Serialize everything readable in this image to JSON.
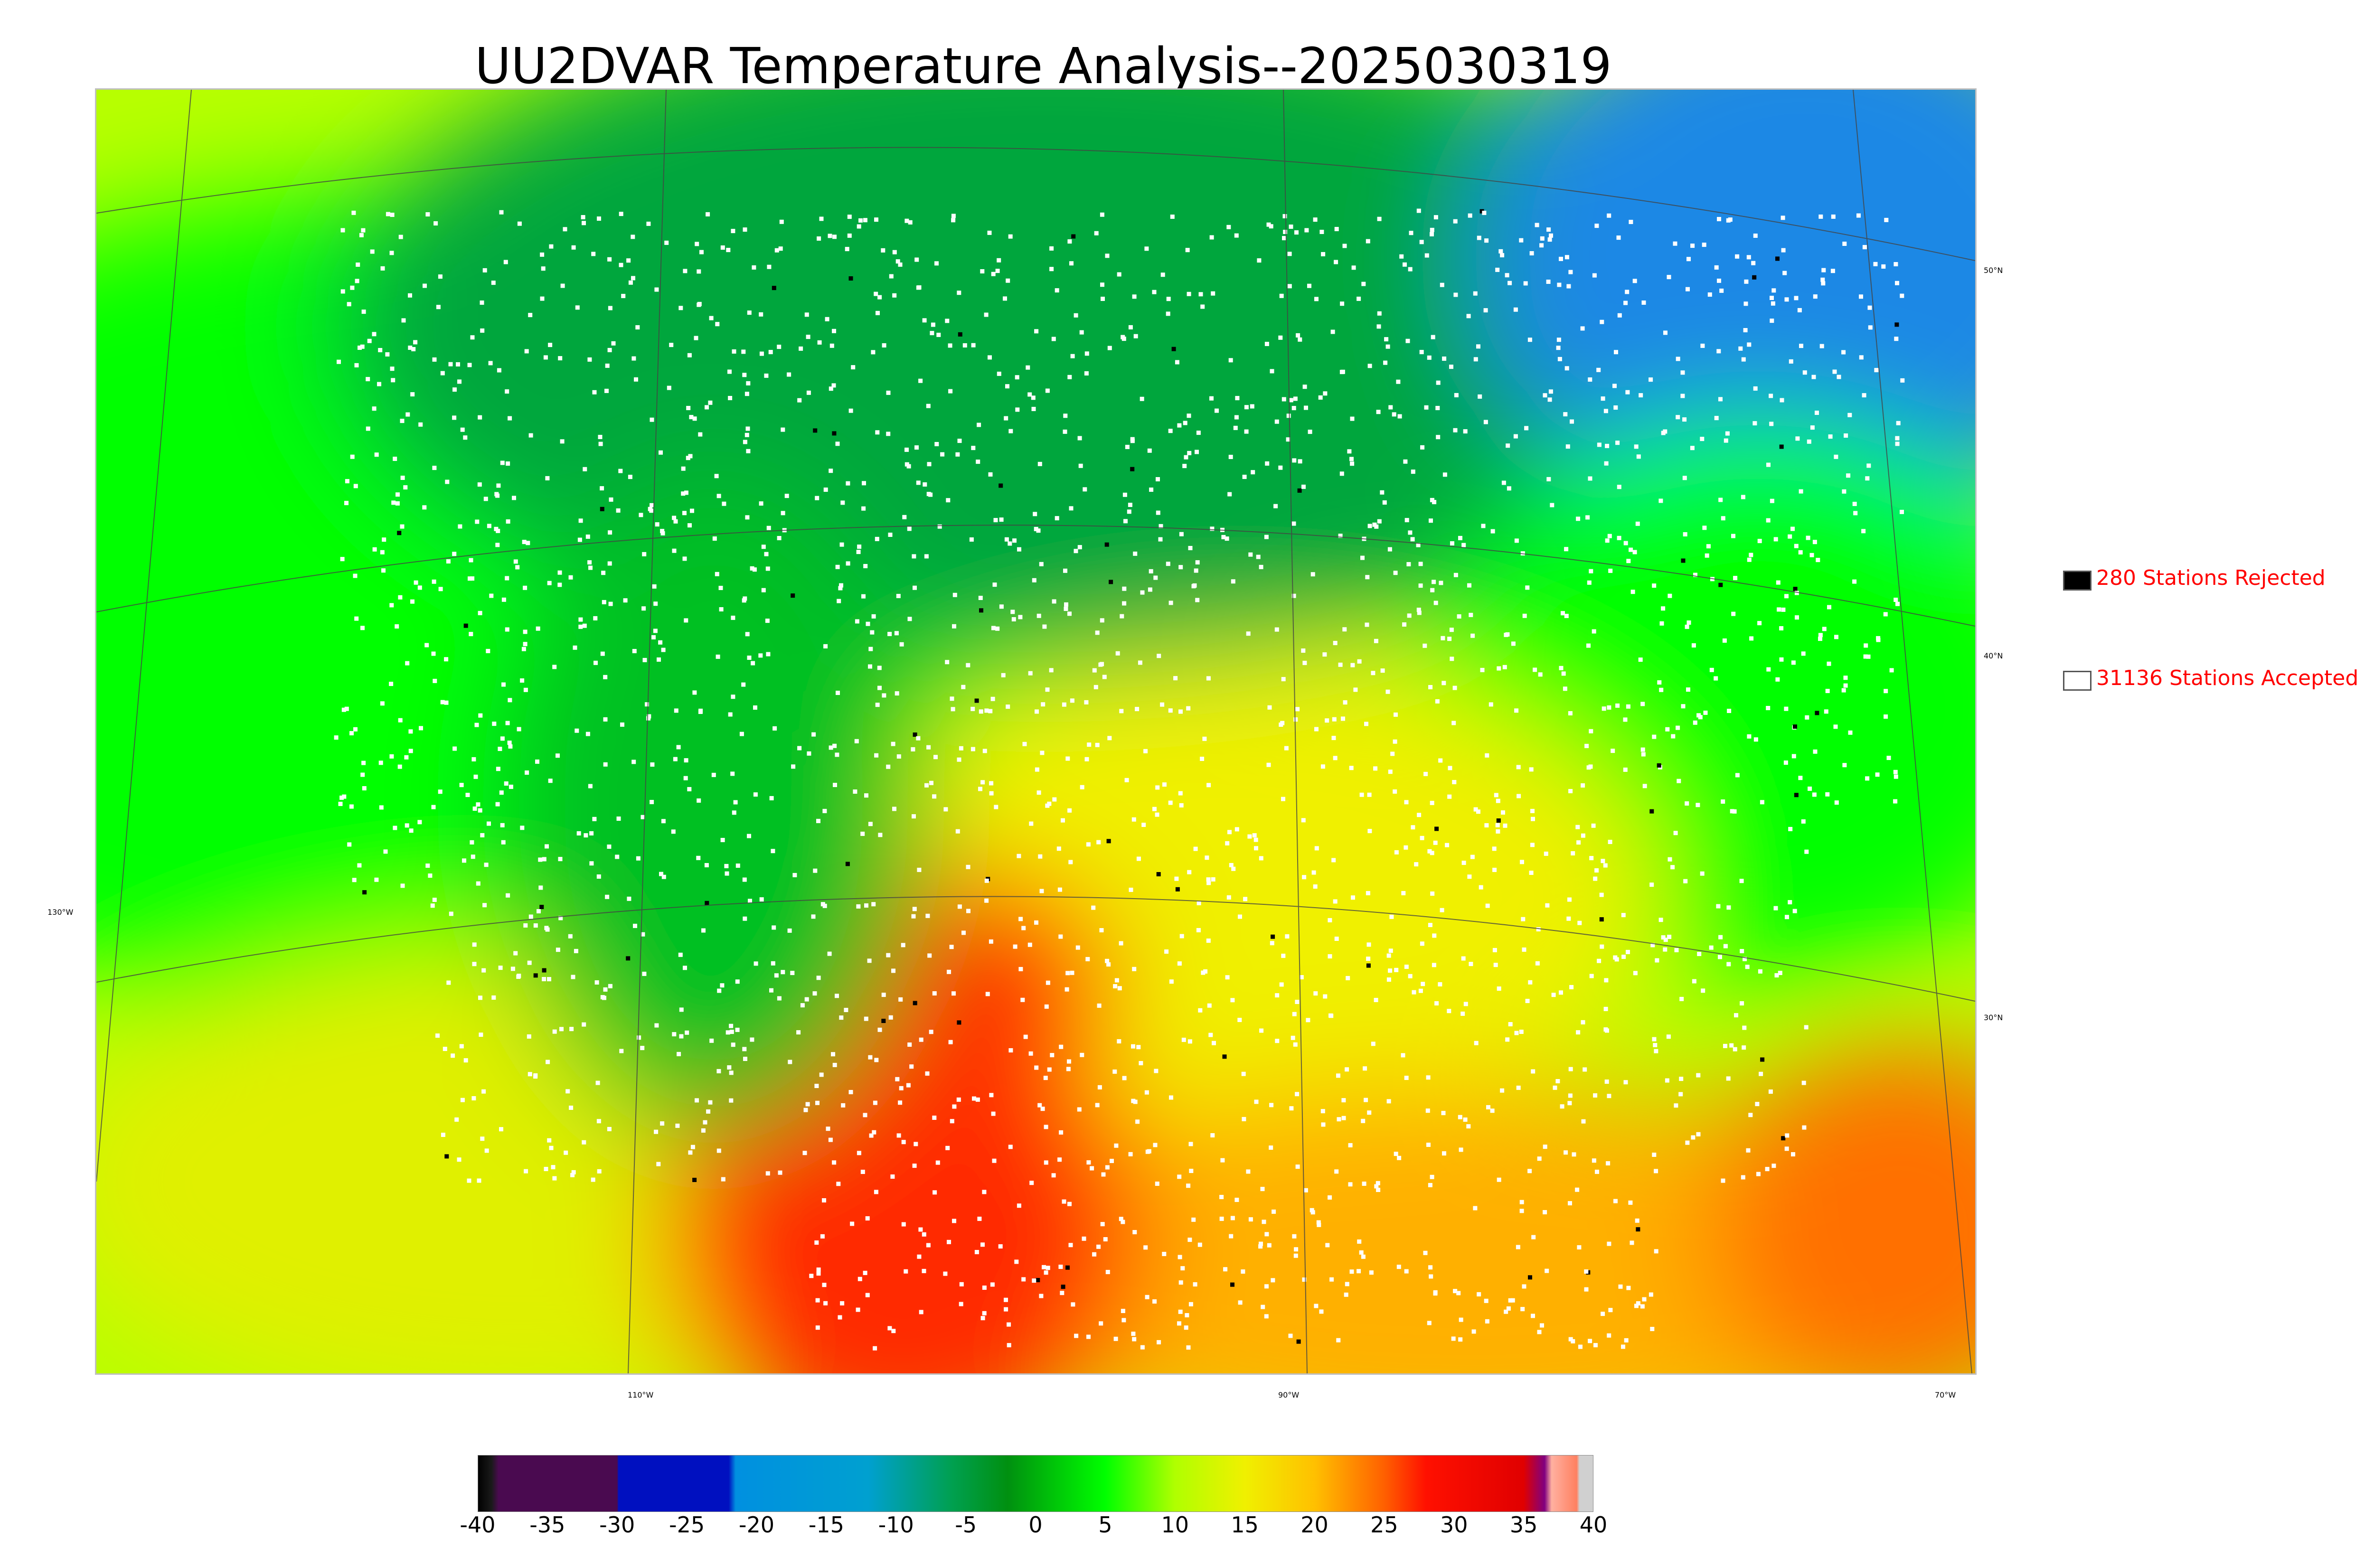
{
  "title": "UU2DVAR Temperature Analysis--2025030319",
  "map": {
    "lat_labels": [
      "50°N",
      "40°N",
      "30°N"
    ],
    "lon_labels": [
      "130°W",
      "110°W",
      "90°W",
      "70°W"
    ],
    "colors": {
      "cold": "#1e88e5",
      "cool": "#00a63c",
      "mild": "#00ff00",
      "warm": "#d4ff00",
      "hot": "#ffb000",
      "very_hot": "#ff2a00",
      "station_accepted": "#ffffff",
      "station_rejected": "#000000"
    }
  },
  "legend": {
    "rejected": {
      "label": "280 Stations Rejected",
      "swatch": "#000000"
    },
    "accepted": {
      "label": "31136 Stations Accepted",
      "swatch": "#ffffff"
    }
  },
  "colorbar": {
    "ticks": [
      "-40",
      "-35",
      "-30",
      "-25",
      "-20",
      "-15",
      "-10",
      "-5",
      "0",
      "5",
      "10",
      "15",
      "20",
      "25",
      "30",
      "35",
      "40"
    ],
    "range": [
      -40,
      40
    ],
    "stops": [
      {
        "v": -40,
        "c": "#000000"
      },
      {
        "v": -39,
        "c": "#1a1a1a"
      },
      {
        "v": -38.5,
        "c": "#4a0a50"
      },
      {
        "v": -30,
        "c": "#4a0a50"
      },
      {
        "v": -29.9,
        "c": "#0010c0"
      },
      {
        "v": -22,
        "c": "#0010c0"
      },
      {
        "v": -21.5,
        "c": "#0090e0"
      },
      {
        "v": -12,
        "c": "#00a0d0"
      },
      {
        "v": -6,
        "c": "#00a050"
      },
      {
        "v": -2,
        "c": "#009010"
      },
      {
        "v": 5,
        "c": "#00ff00"
      },
      {
        "v": 10,
        "c": "#b0ff00"
      },
      {
        "v": 15,
        "c": "#f0f000"
      },
      {
        "v": 20,
        "c": "#ffc000"
      },
      {
        "v": 25,
        "c": "#ff6000"
      },
      {
        "v": 28,
        "c": "#ff1000"
      },
      {
        "v": 35,
        "c": "#e00000"
      },
      {
        "v": 36.5,
        "c": "#800080"
      },
      {
        "v": 37,
        "c": "#ffb0a0"
      },
      {
        "v": 38.8,
        "c": "#ff8060"
      },
      {
        "v": 39,
        "c": "#d0d0d0"
      },
      {
        "v": 40,
        "c": "#d0d0d0"
      }
    ]
  }
}
